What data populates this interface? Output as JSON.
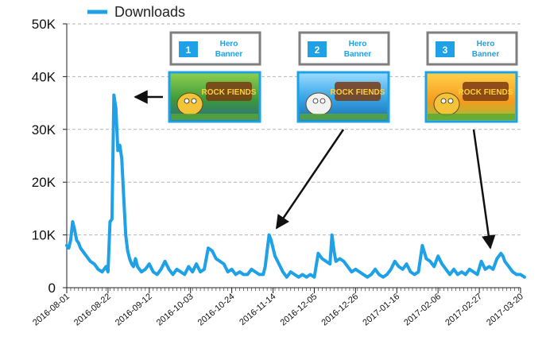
{
  "colors": {
    "series": "#1ea1e6",
    "grid": "#b5b5b5",
    "axis": "#222222",
    "arrow": "#111111",
    "banner_border": "#7f7f7f",
    "banner_text": "#1ea1e6",
    "badge": "#1ea1e6"
  },
  "legend": {
    "label": "Downloads",
    "position": "top-left"
  },
  "banners": [
    {
      "number": "1",
      "label_line1": "Hero",
      "label_line2": "Banner",
      "thumb_title": "ROCK FIENDS",
      "thumb_theme": "jungle-green",
      "points_to": "2016-08-26"
    },
    {
      "number": "2",
      "label_line1": "Hero",
      "label_line2": "Banner",
      "thumb_title": "ROCK FIENDS",
      "thumb_theme": "ocean-blue",
      "points_to": "2016-11-12"
    },
    {
      "number": "3",
      "label_line1": "Hero",
      "label_line2": "Banner",
      "thumb_title": "ROCK FIENDS",
      "thumb_theme": "easter-orange",
      "points_to": "2017-03-11"
    }
  ],
  "chart_data": {
    "type": "line",
    "title": "",
    "xlabel": "",
    "ylabel": "",
    "ylim": [
      0,
      50000
    ],
    "yticks": [
      0,
      10000,
      20000,
      30000,
      40000,
      50000
    ],
    "ytick_labels": [
      "0",
      "10K",
      "20K",
      "30K",
      "40K",
      "50K"
    ],
    "grid": "horizontal dashed",
    "xlim": [
      "2016-08-01",
      "2017-03-20"
    ],
    "xticks": [
      "2016-08-01",
      "2016-08-22",
      "2016-09-12",
      "2016-10-03",
      "2016-10-24",
      "2016-11-14",
      "2016-12-05",
      "2016-12-26",
      "2017-01-16",
      "2017-02-06",
      "2017-02-27",
      "2017-03-20"
    ],
    "series": [
      {
        "name": "Downloads",
        "x": [
          "2016-08-01",
          "2016-08-02",
          "2016-08-03",
          "2016-08-04",
          "2016-08-05",
          "2016-08-06",
          "2016-08-07",
          "2016-08-08",
          "2016-08-09",
          "2016-08-11",
          "2016-08-13",
          "2016-08-15",
          "2016-08-17",
          "2016-08-19",
          "2016-08-21",
          "2016-08-22",
          "2016-08-23",
          "2016-08-24",
          "2016-08-25",
          "2016-08-26",
          "2016-08-27",
          "2016-08-28",
          "2016-08-29",
          "2016-08-30",
          "2016-08-31",
          "2016-09-01",
          "2016-09-02",
          "2016-09-03",
          "2016-09-04",
          "2016-09-05",
          "2016-09-06",
          "2016-09-08",
          "2016-09-10",
          "2016-09-12",
          "2016-09-14",
          "2016-09-16",
          "2016-09-18",
          "2016-09-20",
          "2016-09-22",
          "2016-09-24",
          "2016-09-26",
          "2016-09-28",
          "2016-09-30",
          "2016-10-02",
          "2016-10-04",
          "2016-10-06",
          "2016-10-08",
          "2016-10-10",
          "2016-10-12",
          "2016-10-14",
          "2016-10-16",
          "2016-10-18",
          "2016-10-20",
          "2016-10-22",
          "2016-10-24",
          "2016-10-26",
          "2016-10-28",
          "2016-10-30",
          "2016-11-01",
          "2016-11-03",
          "2016-11-05",
          "2016-11-07",
          "2016-11-09",
          "2016-11-10",
          "2016-11-11",
          "2016-11-12",
          "2016-11-13",
          "2016-11-15",
          "2016-11-17",
          "2016-11-19",
          "2016-11-21",
          "2016-11-23",
          "2016-11-25",
          "2016-11-27",
          "2016-11-29",
          "2016-12-01",
          "2016-12-03",
          "2016-12-05",
          "2016-12-07",
          "2016-12-09",
          "2016-12-11",
          "2016-12-13",
          "2016-12-14",
          "2016-12-15",
          "2016-12-16",
          "2016-12-18",
          "2016-12-20",
          "2016-12-22",
          "2016-12-24",
          "2016-12-26",
          "2016-12-28",
          "2016-12-30",
          "2017-01-01",
          "2017-01-03",
          "2017-01-05",
          "2017-01-07",
          "2017-01-09",
          "2017-01-11",
          "2017-01-13",
          "2017-01-15",
          "2017-01-17",
          "2017-01-19",
          "2017-01-21",
          "2017-01-23",
          "2017-01-25",
          "2017-01-27",
          "2017-01-29",
          "2017-01-31",
          "2017-02-02",
          "2017-02-04",
          "2017-02-06",
          "2017-02-08",
          "2017-02-10",
          "2017-02-12",
          "2017-02-14",
          "2017-02-16",
          "2017-02-18",
          "2017-02-20",
          "2017-02-22",
          "2017-02-24",
          "2017-02-26",
          "2017-02-28",
          "2017-03-02",
          "2017-03-04",
          "2017-03-06",
          "2017-03-08",
          "2017-03-10",
          "2017-03-11",
          "2017-03-12",
          "2017-03-14",
          "2017-03-16",
          "2017-03-18",
          "2017-03-20",
          "2017-03-22"
        ],
        "values": [
          8000,
          7500,
          9000,
          12500,
          11000,
          9000,
          8500,
          7500,
          7000,
          6000,
          5000,
          4500,
          3500,
          3000,
          4000,
          3000,
          12500,
          13000,
          36500,
          34000,
          26000,
          27000,
          24500,
          17000,
          10000,
          7000,
          5500,
          4500,
          4000,
          5500,
          4000,
          3000,
          3500,
          4500,
          3000,
          2500,
          3500,
          5000,
          3500,
          2500,
          3500,
          3000,
          2500,
          4000,
          3000,
          4500,
          3000,
          3500,
          7500,
          7000,
          5500,
          5000,
          4500,
          3000,
          3500,
          2500,
          3000,
          2500,
          2500,
          3500,
          3000,
          2500,
          2500,
          4000,
          7000,
          10000,
          9000,
          6000,
          4500,
          3000,
          2000,
          3000,
          2500,
          2000,
          2500,
          2000,
          2500,
          2000,
          6500,
          5500,
          5000,
          4500,
          10000,
          7000,
          5000,
          5500,
          5000,
          4000,
          3000,
          3500,
          3000,
          2500,
          2000,
          2500,
          3500,
          2500,
          2000,
          2500,
          3500,
          5000,
          4000,
          3500,
          4500,
          3000,
          2500,
          3000,
          8000,
          5500,
          5000,
          4000,
          6000,
          4500,
          3500,
          2500,
          3500,
          2500,
          3000,
          2500,
          3500,
          3000,
          2500,
          5000,
          3500,
          4000,
          3500,
          5500,
          6500,
          6000,
          5000,
          4000,
          3000,
          2500,
          2500,
          2000
        ]
      }
    ]
  }
}
